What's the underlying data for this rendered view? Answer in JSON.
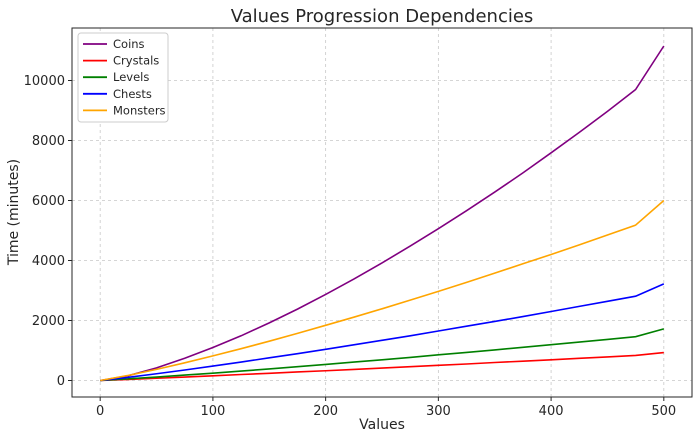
{
  "chart_data": {
    "type": "line",
    "title": "Values Progression Dependencies",
    "xlabel": "Values",
    "ylabel": "Time (minutes)",
    "xlim": [
      -25,
      525
    ],
    "ylim": [
      -550,
      11750
    ],
    "x_ticks": [
      0,
      100,
      200,
      300,
      400,
      500
    ],
    "y_ticks": [
      0,
      2000,
      4000,
      6000,
      8000,
      10000
    ],
    "grid": true,
    "legend_position": "top-left",
    "x": [
      0,
      25,
      50,
      75,
      100,
      125,
      150,
      175,
      200,
      225,
      250,
      275,
      300,
      325,
      350,
      375,
      400,
      425,
      450,
      475,
      500
    ],
    "series": [
      {
        "name": "Coins",
        "color": "#800080",
        "values": [
          0,
          160,
          420,
          740,
          1100,
          1490,
          1920,
          2380,
          2870,
          3380,
          3920,
          4480,
          5060,
          5660,
          6280,
          6920,
          7590,
          8270,
          8970,
          9700,
          11150
        ]
      },
      {
        "name": "Crystals",
        "color": "#ff0000",
        "values": [
          0,
          35,
          75,
          115,
          155,
          200,
          240,
          285,
          325,
          370,
          415,
          460,
          505,
          550,
          600,
          645,
          690,
          740,
          785,
          835,
          930
        ]
      },
      {
        "name": "Levels",
        "color": "#008000",
        "values": [
          0,
          55,
          115,
          180,
          245,
          315,
          385,
          460,
          535,
          615,
          690,
          770,
          855,
          935,
          1020,
          1105,
          1195,
          1280,
          1370,
          1460,
          1720
        ]
      },
      {
        "name": "Chests",
        "color": "#0000ff",
        "values": [
          0,
          105,
          225,
          350,
          480,
          615,
          755,
          895,
          1040,
          1190,
          1340,
          1490,
          1650,
          1810,
          1970,
          2130,
          2300,
          2470,
          2640,
          2810,
          3220
        ]
      },
      {
        "name": "Monsters",
        "color": "#ffa500",
        "values": [
          0,
          170,
          370,
          590,
          820,
          1060,
          1310,
          1570,
          1840,
          2110,
          2390,
          2680,
          2970,
          3270,
          3580,
          3890,
          4200,
          4520,
          4850,
          5180,
          6000
        ]
      }
    ]
  }
}
